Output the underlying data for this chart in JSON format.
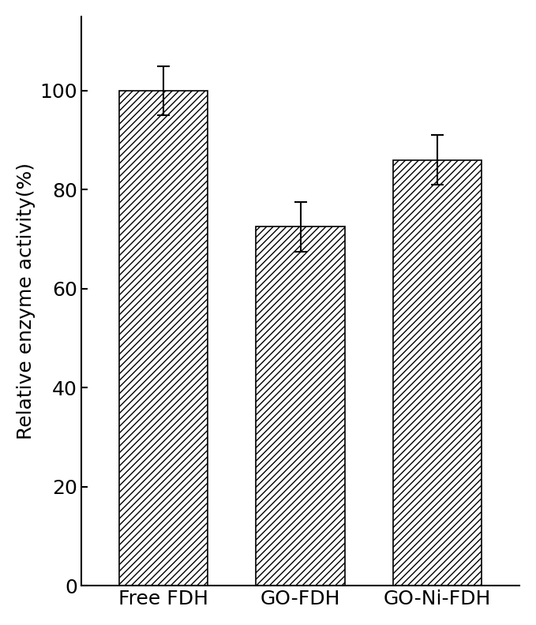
{
  "categories": [
    "Free FDH",
    "GO-FDH",
    "GO-Ni-FDH"
  ],
  "values": [
    100.0,
    72.5,
    86.0
  ],
  "errors": [
    5.0,
    5.0,
    5.0
  ],
  "ylabel": "Relative enzyme activity(%)",
  "ylim": [
    0,
    115
  ],
  "yticks": [
    0,
    20,
    40,
    60,
    80,
    100
  ],
  "bar_color": "white",
  "bar_edgecolor": "#000000",
  "hatch": "////",
  "bar_width": 0.65,
  "figsize": [
    6.79,
    7.92
  ],
  "dpi": 100,
  "tick_font_size": 18,
  "label_font_size": 18
}
